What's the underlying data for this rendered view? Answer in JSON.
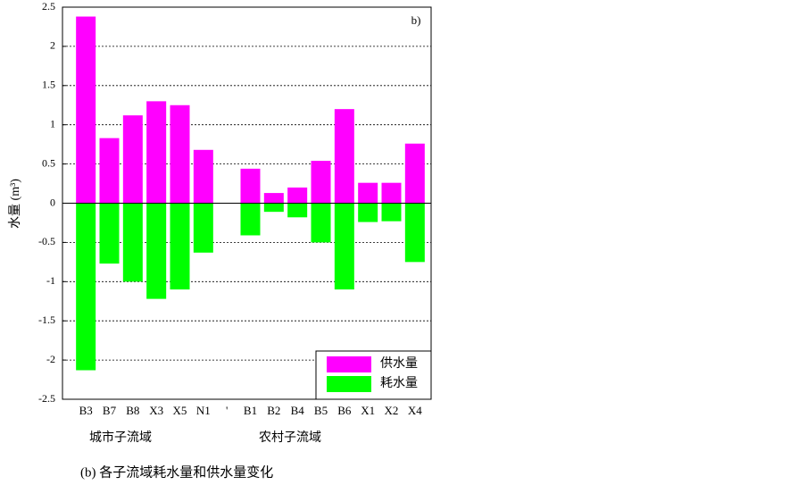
{
  "chart_data": {
    "type": "bar",
    "panel_label": "b)",
    "y_label": "水量 (m³)",
    "categories": [
      "B3",
      "B7",
      "B8",
      "X3",
      "X5",
      "N1",
      "'",
      "B1",
      "B2",
      "B4",
      "B5",
      "B6",
      "X1",
      "X2",
      "X4"
    ],
    "series": [
      {
        "name": "供水量",
        "color": "#ff00ff",
        "values": [
          2.38,
          0.83,
          1.12,
          1.3,
          1.25,
          0.68,
          null,
          0.44,
          0.13,
          0.2,
          0.54,
          1.2,
          0.26,
          0.26,
          0.76
        ]
      },
      {
        "name": "耗水量",
        "color": "#00ff00",
        "values": [
          -2.13,
          -0.77,
          -1.0,
          -1.22,
          -1.1,
          -0.63,
          null,
          -0.41,
          -0.11,
          -0.18,
          -0.5,
          -1.1,
          -0.24,
          -0.23,
          -0.75
        ]
      }
    ],
    "ylim": [
      -2.5,
      2.5
    ],
    "yticks": [
      2.5,
      2,
      1.5,
      1,
      0.5,
      0,
      -0.5,
      -1,
      -1.5,
      -2,
      -2.5
    ],
    "grid": true,
    "legend": "lower right",
    "group_labels": [
      "城市子流域",
      "农村子流域"
    ],
    "caption": "(b) 各子流域耗水量和供水量变化"
  }
}
